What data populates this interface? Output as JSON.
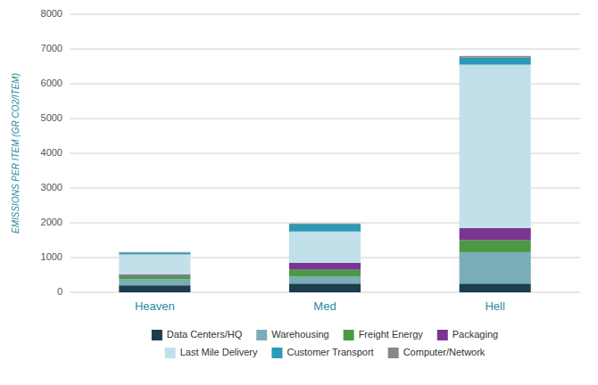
{
  "chart_data": {
    "type": "bar",
    "stacked": true,
    "categories": [
      "Heaven",
      "Med",
      "Hell"
    ],
    "series": [
      {
        "name": "Data Centers/HQ",
        "color": "#1c3d4e",
        "values": [
          200,
          250,
          250
        ]
      },
      {
        "name": "Warehousing",
        "color": "#7aadb8",
        "values": [
          180,
          200,
          900
        ]
      },
      {
        "name": "Freight Energy",
        "color": "#4a9a45",
        "values": [
          100,
          200,
          350
        ]
      },
      {
        "name": "Packaging",
        "color": "#7b3590",
        "values": [
          30,
          200,
          350
        ]
      },
      {
        "name": "Last Mile Delivery",
        "color": "#c2e0ea",
        "values": [
          580,
          900,
          4700
        ]
      },
      {
        "name": "Customer Transport",
        "color": "#2a9ab5",
        "values": [
          50,
          200,
          200
        ]
      },
      {
        "name": "Computer/Network",
        "color": "#888888",
        "values": [
          20,
          30,
          50
        ]
      }
    ],
    "ylabel": "EMISSIONS PER ITEM (GR CO2/ITEM)",
    "ylim": [
      0,
      8000
    ],
    "yticks": [
      0,
      1000,
      2000,
      3000,
      4000,
      5000,
      6000,
      7000,
      8000
    ],
    "grid": true,
    "legend": "bottom"
  }
}
